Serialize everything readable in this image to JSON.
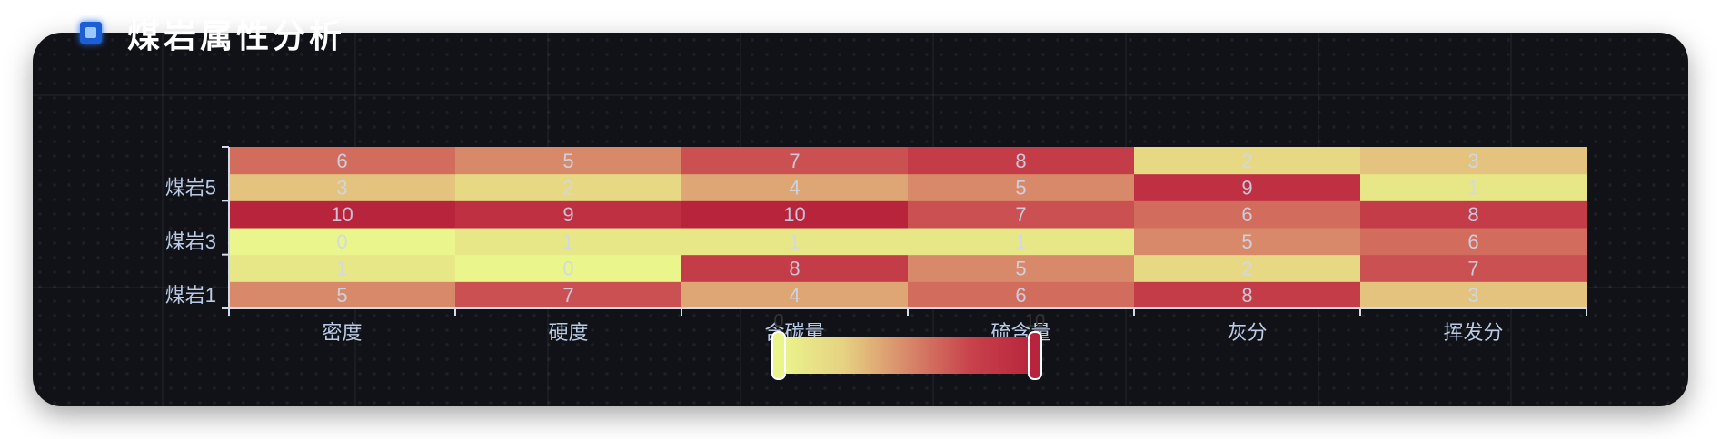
{
  "header": {
    "title": "煤岩属性分析"
  },
  "chart_data": {
    "type": "heatmap",
    "x_categories": [
      "密度",
      "硬度",
      "含碳量",
      "硫含量",
      "灰分",
      "挥发分"
    ],
    "y_categories": [
      "煤岩1",
      "",
      "煤岩3",
      "",
      "煤岩5",
      ""
    ],
    "values": [
      [
        5,
        7,
        4,
        6,
        8,
        3
      ],
      [
        1,
        0,
        8,
        5,
        2,
        7
      ],
      [
        0,
        1,
        1,
        1,
        5,
        6
      ],
      [
        10,
        9,
        10,
        7,
        6,
        8
      ],
      [
        3,
        2,
        4,
        5,
        9,
        1
      ],
      [
        6,
        5,
        7,
        8,
        2,
        3
      ]
    ],
    "visual_map": {
      "min": 0,
      "max": 10,
      "min_label": "0",
      "max_label": "10",
      "colors": [
        "#eaf58c",
        "#e6d282",
        "#d8896a",
        "#c8424c",
        "#b8243c"
      ]
    }
  }
}
